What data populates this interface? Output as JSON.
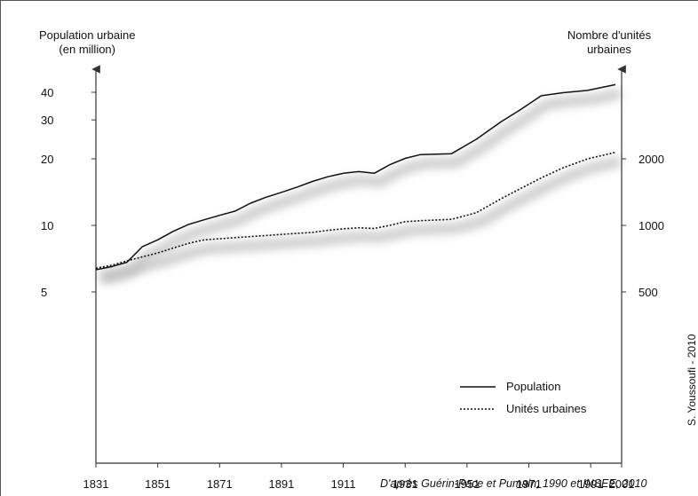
{
  "chart_data": {
    "type": "line",
    "xlabel": "",
    "y_left_label_line1": "Population urbaine",
    "y_left_label_line2": "(en million)",
    "y_right_label_line1": "Nombre d'unités",
    "y_right_label_line2": "urbaines",
    "x_ticks": [
      "1831",
      "1851",
      "1871",
      "1891",
      "1911",
      "1931",
      "1951",
      "1971",
      "1991",
      "2001"
    ],
    "x_tick_values": [
      1831,
      1851,
      1871,
      1891,
      1911,
      1931,
      1951,
      1971,
      1991,
      2001
    ],
    "x_range": [
      1831,
      2001
    ],
    "y_left_scale": "log",
    "y_left_ticks": [
      "5",
      "10",
      "20",
      "30",
      "40"
    ],
    "y_left_tick_values": [
      5,
      10,
      20,
      30,
      40
    ],
    "y_right_scale": "log",
    "y_right_ticks": [
      "500",
      "1000",
      "2000"
    ],
    "y_right_tick_values": [
      500,
      1000,
      2000
    ],
    "grid": false,
    "legend_position": "bottom-right",
    "series": [
      {
        "name": "Population",
        "axis": "left",
        "style": "solid",
        "x": [
          1831,
          1836,
          1841,
          1846,
          1851,
          1856,
          1861,
          1866,
          1871,
          1876,
          1881,
          1886,
          1891,
          1896,
          1901,
          1906,
          1911,
          1916,
          1921,
          1926,
          1931,
          1936,
          1946,
          1954,
          1962,
          1968,
          1975,
          1982,
          1990,
          1999
        ],
        "values": [
          6.3,
          6.5,
          6.8,
          8.0,
          8.6,
          9.4,
          10.1,
          10.6,
          11.1,
          11.6,
          12.6,
          13.4,
          14.1,
          14.9,
          15.8,
          16.6,
          17.2,
          17.5,
          17.2,
          18.8,
          20.1,
          20.9,
          21.1,
          24.5,
          29.4,
          33.2,
          38.6,
          39.8,
          40.8,
          43.3
        ]
      },
      {
        "name": "Unités urbaines",
        "axis": "right",
        "style": "dotted",
        "x": [
          1831,
          1836,
          1841,
          1846,
          1851,
          1856,
          1861,
          1866,
          1871,
          1876,
          1881,
          1886,
          1891,
          1896,
          1901,
          1906,
          1911,
          1916,
          1921,
          1926,
          1931,
          1936,
          1946,
          1954,
          1962,
          1968,
          1975,
          1982,
          1990,
          1999
        ],
        "values": [
          640,
          660,
          690,
          720,
          750,
          790,
          830,
          860,
          870,
          880,
          890,
          900,
          910,
          920,
          930,
          950,
          965,
          975,
          968,
          1000,
          1040,
          1050,
          1065,
          1140,
          1320,
          1460,
          1640,
          1820,
          2000,
          2140
        ]
      }
    ],
    "source_note": "D'après Guérin-Pace et Pumain, 1990 et INSEE, 2010",
    "credit": "S. Youssoufi - 2010"
  }
}
